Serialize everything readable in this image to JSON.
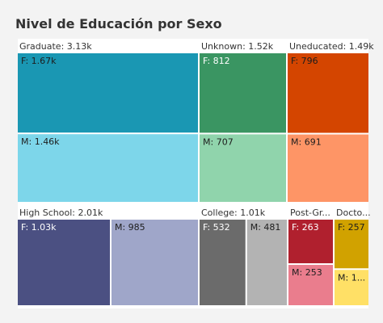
{
  "title": "Nivel de Educación por Sexo",
  "chart_data": {
    "type": "treemap",
    "groups": [
      {
        "label": "Graduate: 3.13k",
        "children": [
          {
            "label": "F: 1.67k",
            "value": 1670,
            "color": "#1a97b3",
            "text_color": "#1d1d1d"
          },
          {
            "label": "M: 1.46k",
            "value": 1460,
            "color": "#7dd6ea",
            "text_color": "#1d1d1d"
          }
        ]
      },
      {
        "label": "Unknown: 1.52k",
        "children": [
          {
            "label": "F: 812",
            "value": 812,
            "color": "#3a9562",
            "text_color": "#ffffff"
          },
          {
            "label": "M: 707",
            "value": 707,
            "color": "#90d4ac",
            "text_color": "#1d1d1d"
          }
        ]
      },
      {
        "label": "Uneducated: 1.49k",
        "children": [
          {
            "label": "F: 796",
            "value": 796,
            "color": "#d44500",
            "text_color": "#1d1d1d"
          },
          {
            "label": "M: 691",
            "value": 691,
            "color": "#fe9566",
            "text_color": "#1d1d1d"
          }
        ]
      },
      {
        "label": "High School: 2.01k",
        "children": [
          {
            "label": "F: 1.03k",
            "value": 1030,
            "color": "#4b5082",
            "text_color": "#ffffff"
          },
          {
            "label": "M: 985",
            "value": 985,
            "color": "#9fa6c9",
            "text_color": "#1d1d1d"
          }
        ]
      },
      {
        "label": "College: 1.01k",
        "children": [
          {
            "label": "F: 532",
            "value": 532,
            "color": "#6b6b6b",
            "text_color": "#ffffff"
          },
          {
            "label": "M: 481",
            "value": 481,
            "color": "#b3b3b3",
            "text_color": "#1d1d1d"
          }
        ]
      },
      {
        "label": "Post-Gr...",
        "children": [
          {
            "label": "F: 263",
            "value": 263,
            "color": "#b0202e",
            "text_color": "#ffffff"
          },
          {
            "label": "M: 253",
            "value": 253,
            "color": "#ea7d8d",
            "text_color": "#1d1d1d"
          }
        ]
      },
      {
        "label": "Docto...",
        "children": [
          {
            "label": "F: 257",
            "value": 257,
            "color": "#d1a200",
            "text_color": "#1d1d1d"
          },
          {
            "label": "M: 1...",
            "value": 195,
            "color": "#ffe066",
            "text_color": "#1d1d1d"
          }
        ]
      }
    ]
  }
}
